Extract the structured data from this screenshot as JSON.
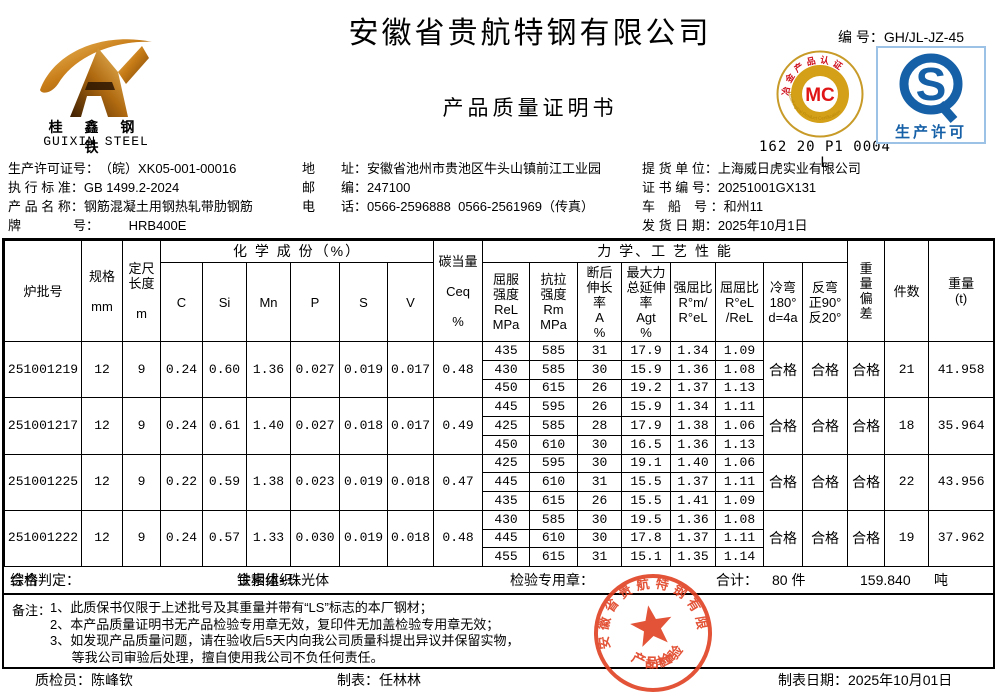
{
  "colors": {
    "border": "#000000",
    "stamp_red": "#e04122",
    "mc_gold": "#d4a017",
    "mc_red": "#e01616",
    "qs_blue": "#1660a7"
  },
  "header": {
    "company": "安徽省贵航特钢有限公司",
    "doc_title": "产品质量证明书",
    "serial_label": "编 号：",
    "serial_value": "GH/JL-JZ-45",
    "logo_cn": "桂 鑫 钢 铁",
    "logo_en": "GUIXIN STEEL",
    "mc": {
      "letters": "MC",
      "arc_top": "冶金产品认证",
      "arc_bottom": "Metallurgical Product Certification",
      "number": "162 20 P1 0004 L"
    },
    "qs": {
      "letter": "S",
      "label": "生产许可"
    }
  },
  "info": {
    "left": [
      {
        "label": "生产许可证号：",
        "value": "（皖）XK05-001-00016"
      },
      {
        "label": "执 行 标 准：",
        "value": "GB 1499.2-2024"
      },
      {
        "label": "产 品 名 称：",
        "value": "钢筋混凝土用钢热轧带肋钢筋"
      },
      {
        "label": "牌　　　　号：",
        "value": "　　 HRB400E"
      }
    ],
    "middle": [
      {
        "label": "地　　址：",
        "value": "安徽省池州市贵池区牛头山镇前江工业园"
      },
      {
        "label": "邮　　编：",
        "value": "247100"
      },
      {
        "label": "电　　话：",
        "value": "0566-2596888  0566-2561969（传真）"
      }
    ],
    "right": [
      {
        "label": "提 货 单 位：",
        "value": "上海威日虎实业有限公司"
      },
      {
        "label": "证 书 编 号：",
        "value": "20251001GX131"
      },
      {
        "label": "车　船　号 ：",
        "value": "和州11"
      },
      {
        "label": "发 货 日 期：",
        "value": "2025年10月1日"
      }
    ]
  },
  "table": {
    "headers": {
      "batch_no": "炉批号",
      "spec": "规格\n\nmm",
      "length": "定尺\n长度\n\nm",
      "chem_group": "化 学 成 份（%）",
      "ceq": "碳当量\n\nCeq\n\n%",
      "mech_group": "力 学、工 艺 性 能",
      "yield": "屈服\n强度\nReL\nMPa",
      "tensile": "抗拉\n强度\nRm\nMPa",
      "elongation": "断后\n伸长\n率\nA\n%",
      "agt": "最大力\n总延伸\n率\nAgt\n%",
      "ratio_rm_rel": "强屈比\nR°m/\nR°eL",
      "ratio_rel_rel": "屈屈比\nR°eL\n/ReL",
      "cold_bend": "冷弯\n180°\nd=4a",
      "reverse_bend": "反弯\n正90°\n反20°",
      "weight_dev": "重\n量\n偏\n差",
      "pieces": "件数",
      "weight": "重量\n(t)"
    },
    "chem_headers": [
      "C",
      "Si",
      "Mn",
      "P",
      "S",
      "V"
    ],
    "batches": [
      {
        "batch_no": "251001219",
        "spec_mm": "12",
        "length_m": "9",
        "chem": [
          "0.24",
          "0.60",
          "1.36",
          "0.027",
          "0.019",
          "0.017"
        ],
        "ceq": "0.48",
        "mech": [
          [
            "435",
            "585",
            "31",
            "17.9",
            "1.34",
            "1.09"
          ],
          [
            "430",
            "585",
            "30",
            "15.9",
            "1.36",
            "1.08"
          ],
          [
            "450",
            "615",
            "26",
            "19.2",
            "1.37",
            "1.13"
          ]
        ],
        "cold_bend": "合格",
        "reverse_bend": "合格",
        "weight_deviation": "合格",
        "pieces": "21",
        "weight_t": "41.958"
      },
      {
        "batch_no": "251001217",
        "spec_mm": "12",
        "length_m": "9",
        "chem": [
          "0.24",
          "0.61",
          "1.40",
          "0.027",
          "0.018",
          "0.017"
        ],
        "ceq": "0.49",
        "mech": [
          [
            "445",
            "595",
            "26",
            "15.9",
            "1.34",
            "1.11"
          ],
          [
            "425",
            "585",
            "28",
            "17.9",
            "1.38",
            "1.06"
          ],
          [
            "450",
            "610",
            "30",
            "16.5",
            "1.36",
            "1.13"
          ]
        ],
        "cold_bend": "合格",
        "reverse_bend": "合格",
        "weight_deviation": "合格",
        "pieces": "18",
        "weight_t": "35.964"
      },
      {
        "batch_no": "251001225",
        "spec_mm": "12",
        "length_m": "9",
        "chem": [
          "0.22",
          "0.59",
          "1.38",
          "0.023",
          "0.019",
          "0.018"
        ],
        "ceq": "0.47",
        "mech": [
          [
            "425",
            "595",
            "30",
            "19.1",
            "1.40",
            "1.06"
          ],
          [
            "445",
            "610",
            "31",
            "15.5",
            "1.37",
            "1.11"
          ],
          [
            "435",
            "615",
            "26",
            "15.5",
            "1.41",
            "1.09"
          ]
        ],
        "cold_bend": "合格",
        "reverse_bend": "合格",
        "weight_deviation": "合格",
        "pieces": "22",
        "weight_t": "43.956"
      },
      {
        "batch_no": "251001222",
        "spec_mm": "12",
        "length_m": "9",
        "chem": [
          "0.24",
          "0.57",
          "1.33",
          "0.030",
          "0.019",
          "0.018"
        ],
        "ceq": "0.48",
        "mech": [
          [
            "430",
            "585",
            "30",
            "19.5",
            "1.36",
            "1.08"
          ],
          [
            "445",
            "610",
            "30",
            "17.8",
            "1.37",
            "1.11"
          ],
          [
            "455",
            "615",
            "31",
            "15.1",
            "1.35",
            "1.14"
          ]
        ],
        "cold_bend": "合格",
        "reverse_bend": "合格",
        "weight_deviation": "合格",
        "pieces": "19",
        "weight_t": "37.962"
      }
    ]
  },
  "summary": {
    "verdict_label": "综合判定：",
    "verdict": "合格",
    "metallography_label": "金相组织：",
    "metallography": "铁素体+珠光体",
    "stamp_label": "检验专用章：",
    "total_label": "合计：",
    "total_pieces": "80 件",
    "total_weight": "159.840",
    "total_unit": "吨"
  },
  "notes": {
    "label": "备注：",
    "lines": "1、此质保书仅限于上述批号及其重量并带有“LS”标志的本厂钢材；\n2、本产品质量证明书无产品检验专用章无效，复印件无加盖检验专用章无效；\n3、如发现产品质量问题，请在验收后5天内向我公司质量科提出异议并保留实物，\n      等我公司审验后处理，擅自使用我公司不负任何责任。"
  },
  "footer": {
    "inspector_label": "质检员：",
    "inspector": "陈峰钦",
    "tabulator_label": "制表：",
    "tabulator": "任林林",
    "date_label": "制表日期：",
    "date": "2025年10月01日"
  },
  "stamp": {
    "company": "安徽省贵航特钢有限公司",
    "line1": "产品检验",
    "line2": "专用章"
  }
}
